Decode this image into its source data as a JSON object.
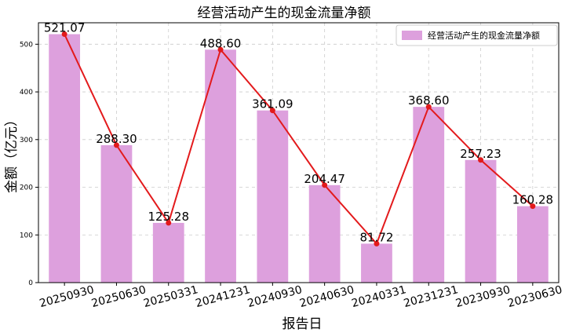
{
  "chart_data": {
    "type": "bar",
    "title": "经营活动产生的现金流量净额",
    "xlabel": "报告日",
    "ylabel": "金额（亿元）",
    "categories": [
      "20250930",
      "20250630",
      "20250331",
      "20241231",
      "20240930",
      "20240630",
      "20240331",
      "20231231",
      "20230930",
      "20230630"
    ],
    "series": [
      {
        "name": "经营活动产生的现金流量净额",
        "values": [
          521.07,
          288.3,
          125.28,
          488.6,
          361.09,
          204.47,
          81.72,
          368.6,
          257.23,
          160.28
        ]
      }
    ],
    "line_overlay": true,
    "data_labels": [
      "521.07",
      "288.30",
      "125.28",
      "488.60",
      "361.09",
      "204.47",
      "81.72",
      "368.60",
      "257.23",
      "160.28"
    ],
    "ylim": [
      0,
      545
    ],
    "yticks": [
      0,
      100,
      200,
      300,
      400,
      500
    ],
    "grid": true,
    "legend": "top-right",
    "colors": {
      "bar": "#dda0dd",
      "line": "#e31a1c",
      "axis": "#000000",
      "grid": "#cccccc"
    }
  }
}
